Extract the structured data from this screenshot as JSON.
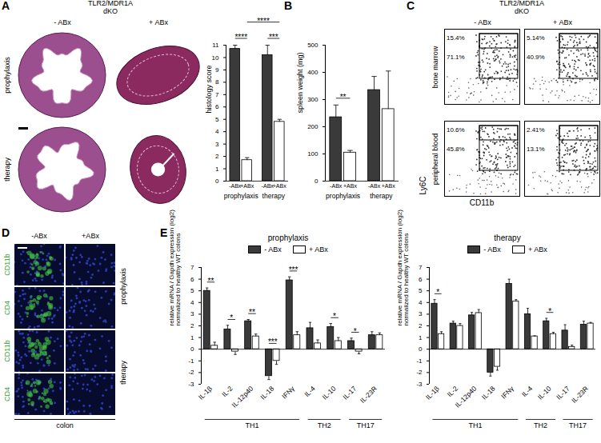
{
  "chart_data": [
    {
      "type": "bar",
      "ylabel": "histology score",
      "categories": [
        "prophylaxis",
        "therapy"
      ],
      "series": [
        {
          "name": "-ABx",
          "color": "#3a3a3a",
          "values": [
            10.7,
            10.2
          ],
          "errors": [
            0.3,
            0.8
          ]
        },
        {
          "name": "+ABx",
          "color": "#ffffff",
          "values": [
            1.7,
            4.8
          ],
          "errors": [
            0.2,
            0.2
          ]
        }
      ],
      "ylim": [
        0,
        11
      ],
      "yticks": [
        0,
        1,
        2,
        3,
        4,
        5,
        6,
        7,
        8,
        9,
        10,
        11
      ],
      "annotations": [
        {
          "label": "****",
          "category": "prophylaxis"
        },
        {
          "label": "***",
          "category": "therapy"
        }
      ],
      "brackets": [
        {
          "label": "****",
          "from": {
            "category": "prophylaxis",
            "series": "+ABx"
          },
          "to": {
            "category": "therapy",
            "series": "+ABx"
          }
        }
      ]
    },
    {
      "type": "bar",
      "ylabel": "spleen weight (mg)",
      "categories": [
        "prophylaxis",
        "therapy"
      ],
      "series": [
        {
          "name": "-ABx",
          "color": "#3a3a3a",
          "values": [
            235,
            335
          ],
          "errors": [
            45,
            50
          ]
        },
        {
          "name": "+ABx",
          "color": "#ffffff",
          "values": [
            105,
            265
          ],
          "errors": [
            8,
            140
          ]
        }
      ],
      "ylim": [
        0,
        500
      ],
      "yticks": [
        0,
        100,
        200,
        300,
        400,
        500
      ],
      "annotations": [
        {
          "label": "**",
          "category": "prophylaxis"
        }
      ]
    },
    {
      "type": "bar",
      "title": "prophylaxis",
      "ylabel": "relative mRNA / Gapdh expression (log2)\nnormalized to healthy WT colons",
      "legend": "top",
      "categories": [
        "IL-1β",
        "IL-2",
        "IL-12p40",
        "IL-18",
        "IFNγ",
        "IL-4",
        "IL-10",
        "IL-17",
        "IL-23R"
      ],
      "series": [
        {
          "name": "- ABx",
          "color": "#3a3a3a",
          "values": [
            5.0,
            1.7,
            2.4,
            -2.3,
            5.9,
            1.8,
            1.9,
            0.7,
            1.2
          ],
          "errors": [
            0.25,
            0.35,
            0.15,
            0.3,
            0.3,
            0.5,
            0.3,
            0.25,
            0.3
          ]
        },
        {
          "name": "+ ABx",
          "color": "#ffffff",
          "values": [
            0.3,
            -0.2,
            1.1,
            -1.0,
            1.2,
            0.5,
            0.7,
            -0.2,
            1.2
          ],
          "errors": [
            0.3,
            0.25,
            0.2,
            0.3,
            0.3,
            0.3,
            0.3,
            0.2,
            0.2
          ]
        }
      ],
      "ylim": [
        -3,
        7
      ],
      "yticks": [
        -3,
        -2,
        -1,
        0,
        1,
        2,
        3,
        4,
        5,
        6,
        7
      ],
      "annotations": [
        {
          "label": "**",
          "category": "IL-1β"
        },
        {
          "label": "*",
          "category": "IL-2"
        },
        {
          "label": "**",
          "category": "IL-12p40"
        },
        {
          "label": "***",
          "category": "IL-18"
        },
        {
          "label": "***",
          "category": "IFNγ"
        },
        {
          "label": "*",
          "category": "IL-10"
        },
        {
          "label": "*",
          "category": "IL-17"
        }
      ],
      "groups": [
        {
          "label": "TH1",
          "categories": [
            "IL-1β",
            "IL-2",
            "IL-12p40",
            "IL-18",
            "IFNγ"
          ]
        },
        {
          "label": "TH2",
          "categories": [
            "IL-4",
            "IL-10"
          ]
        },
        {
          "label": "TH17",
          "categories": [
            "IL-17",
            "IL-23R"
          ]
        }
      ]
    },
    {
      "type": "bar",
      "title": "therapy",
      "ylabel": "relative mRNA / Gapdh expression (log2)\nnormalized to healthy WT colons",
      "legend": "top",
      "categories": [
        "IL-1β",
        "IL-2",
        "IL-12p40",
        "IL-18",
        "IFNγ",
        "IL-4",
        "IL-10",
        "IL-17",
        "IL-23R"
      ],
      "series": [
        {
          "name": "- ABx",
          "color": "#3a3a3a",
          "values": [
            3.9,
            2.2,
            2.9,
            -2.0,
            5.6,
            3.0,
            2.4,
            1.6,
            2.1
          ],
          "errors": [
            0.35,
            0.2,
            0.25,
            0.3,
            0.4,
            0.5,
            0.25,
            0.5,
            0.3
          ]
        },
        {
          "name": "+ ABx",
          "color": "#ffffff",
          "values": [
            1.3,
            2.0,
            3.1,
            -1.5,
            4.1,
            1.1,
            1.3,
            0.2,
            2.2
          ],
          "errors": [
            0.2,
            0.2,
            0.3,
            0.3,
            0.15,
            0.05,
            0.15,
            0.15,
            0.1
          ]
        }
      ],
      "ylim": [
        -3,
        7
      ],
      "yticks": [
        -3,
        -2,
        -1,
        0,
        1,
        2,
        3,
        4,
        5,
        6,
        7
      ],
      "annotations": [
        {
          "label": "*",
          "category": "IL-1β"
        },
        {
          "label": "*",
          "category": "IL-10"
        }
      ],
      "groups": [
        {
          "label": "TH1",
          "categories": [
            "IL-1β",
            "IL-2",
            "IL-12p40",
            "IL-18",
            "IFNγ"
          ]
        },
        {
          "label": "TH2",
          "categories": [
            "IL-4",
            "IL-10"
          ]
        },
        {
          "label": "TH17",
          "categories": [
            "IL-17",
            "IL-23R"
          ]
        }
      ]
    }
  ],
  "figure": {
    "A": {
      "letter": "A",
      "header": "TLR2/MDR1A\ndKO",
      "columns": [
        "- ABx",
        "+ ABx"
      ],
      "rows": [
        "prophylaxis",
        "therapy"
      ]
    },
    "B": {
      "letter": "B"
    },
    "C": {
      "letter": "C",
      "header": "TLR2/MDR1A\ndKO",
      "columns": [
        "- ABx",
        "+ ABx"
      ],
      "rows": [
        "bone marrow",
        "peripheral blood"
      ],
      "gates": [
        [
          [
            "15.4%",
            "71.1%"
          ],
          [
            "5.14%",
            "40.9%"
          ]
        ],
        [
          [
            "10.6%",
            "45.8%"
          ],
          [
            "2.41%",
            "13.1%"
          ]
        ]
      ],
      "x_label": "CD11b",
      "y_label": "Ly6C"
    },
    "D": {
      "letter": "D",
      "columns": [
        "-ABx",
        "+ABx"
      ],
      "rows": [
        "CD11b",
        "CD4",
        "CD11b",
        "CD4"
      ],
      "groups": [
        "prophylaxis",
        "therapy"
      ],
      "footer": "colon"
    },
    "E": {
      "letter": "E"
    }
  }
}
